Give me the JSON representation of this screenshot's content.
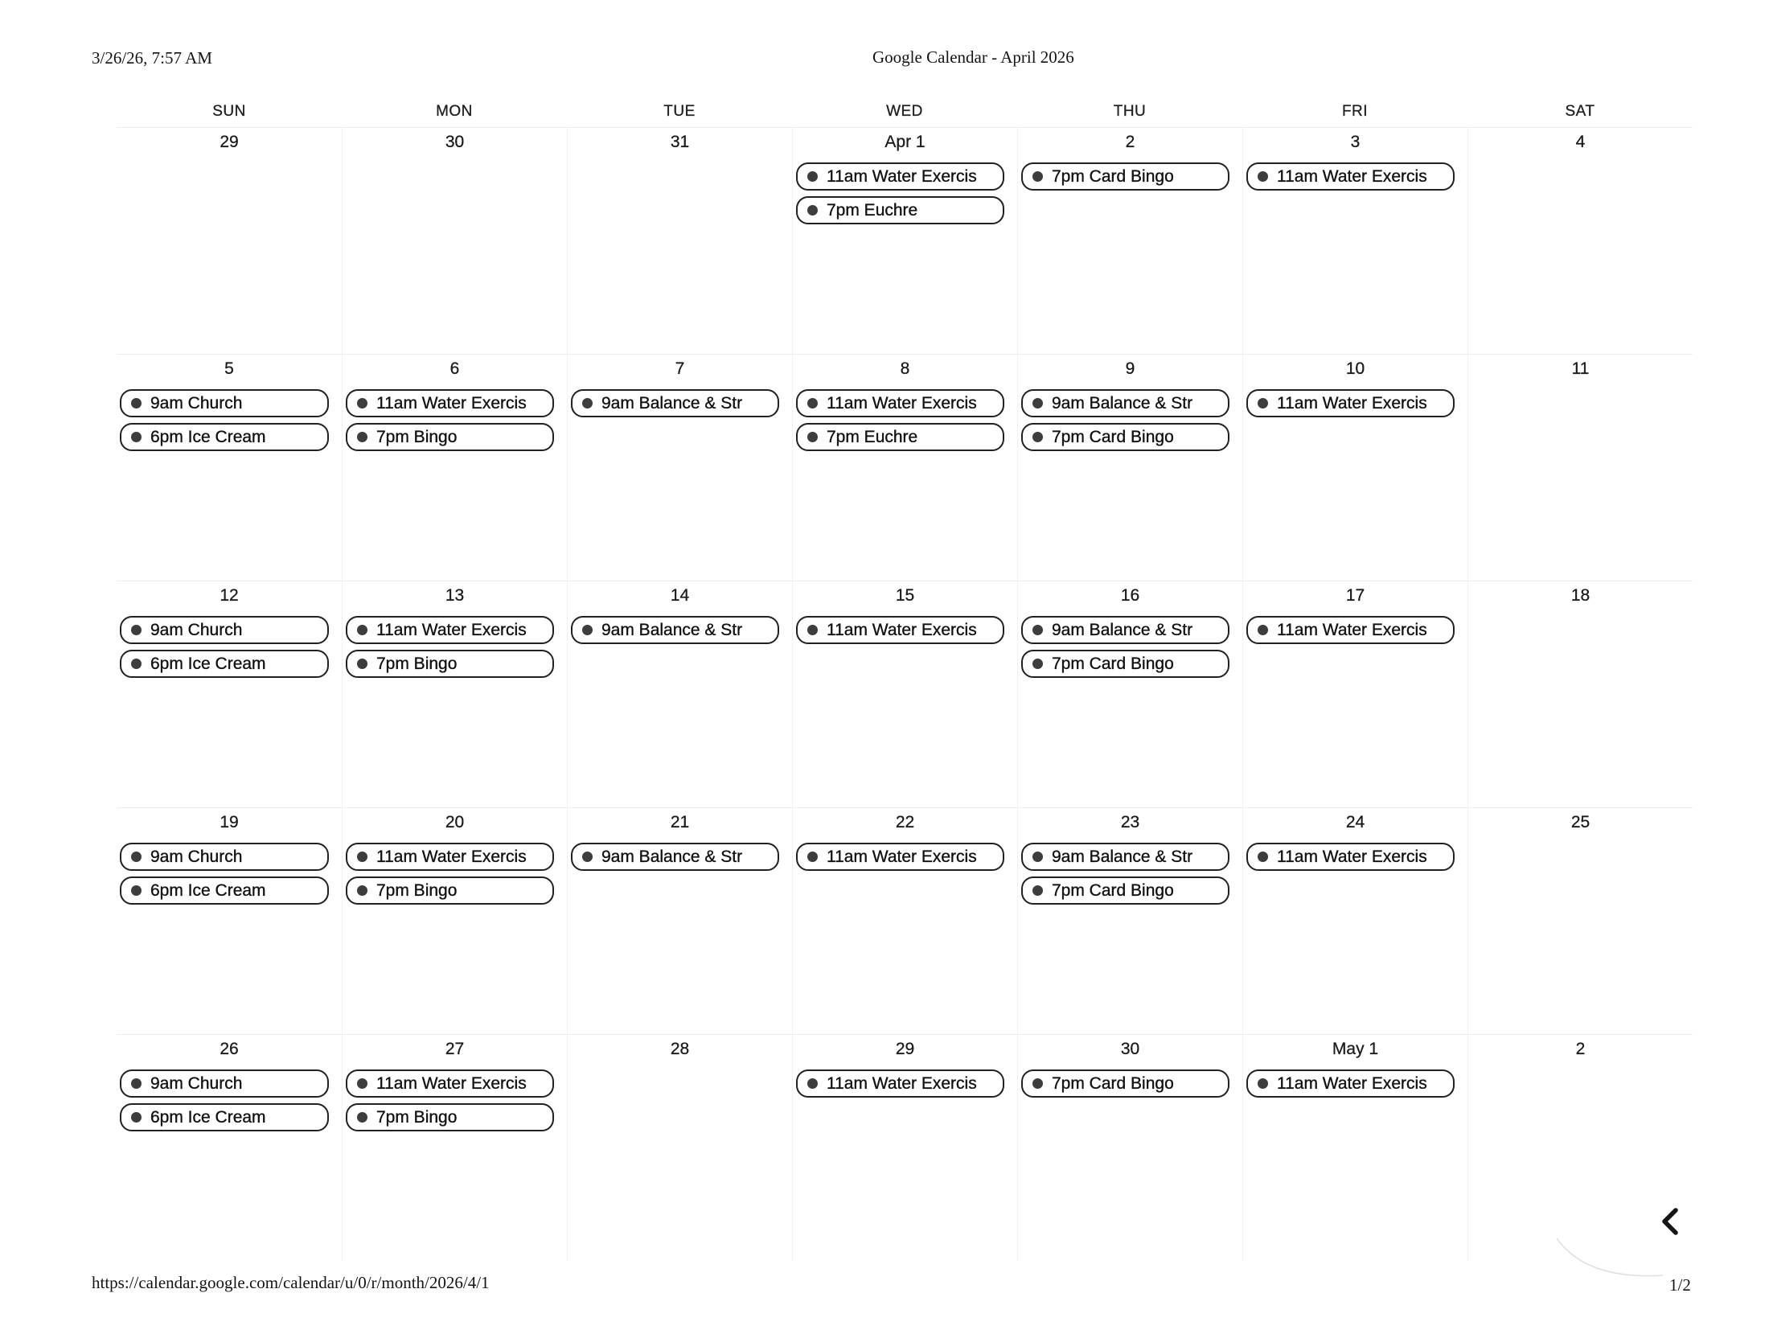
{
  "print_header": {
    "datetime": "3/26/26, 7:57 AM",
    "title": "Google Calendar - April 2026"
  },
  "weekday_headers": [
    "SUN",
    "MON",
    "TUE",
    "WED",
    "THU",
    "FRI",
    "SAT"
  ],
  "weeks": [
    {
      "days": [
        {
          "date": "29",
          "events": []
        },
        {
          "date": "30",
          "events": []
        },
        {
          "date": "31",
          "events": []
        },
        {
          "date": "Apr 1",
          "events": [
            "11am Water Exercis",
            "7pm Euchre"
          ]
        },
        {
          "date": "2",
          "events": [
            "7pm Card Bingo"
          ]
        },
        {
          "date": "3",
          "events": [
            "11am Water Exercis"
          ]
        },
        {
          "date": "4",
          "events": []
        }
      ]
    },
    {
      "days": [
        {
          "date": "5",
          "events": [
            "9am Church",
            "6pm Ice Cream"
          ]
        },
        {
          "date": "6",
          "events": [
            "11am Water Exercis",
            "7pm Bingo"
          ]
        },
        {
          "date": "7",
          "events": [
            "9am Balance & Str"
          ]
        },
        {
          "date": "8",
          "events": [
            "11am Water Exercis",
            "7pm Euchre"
          ]
        },
        {
          "date": "9",
          "events": [
            "9am Balance & Str",
            "7pm Card Bingo"
          ]
        },
        {
          "date": "10",
          "events": [
            "11am Water Exercis"
          ]
        },
        {
          "date": "11",
          "events": []
        }
      ]
    },
    {
      "days": [
        {
          "date": "12",
          "events": [
            "9am Church",
            "6pm Ice Cream"
          ]
        },
        {
          "date": "13",
          "events": [
            "11am Water Exercis",
            "7pm Bingo"
          ]
        },
        {
          "date": "14",
          "events": [
            "9am Balance & Str"
          ]
        },
        {
          "date": "15",
          "events": [
            "11am Water Exercis"
          ]
        },
        {
          "date": "16",
          "events": [
            "9am Balance & Str",
            "7pm Card Bingo"
          ]
        },
        {
          "date": "17",
          "events": [
            "11am Water Exercis"
          ]
        },
        {
          "date": "18",
          "events": []
        }
      ]
    },
    {
      "days": [
        {
          "date": "19",
          "events": [
            "9am Church",
            "6pm Ice Cream"
          ]
        },
        {
          "date": "20",
          "events": [
            "11am Water Exercis",
            "7pm Bingo"
          ]
        },
        {
          "date": "21",
          "events": [
            "9am Balance & Str"
          ]
        },
        {
          "date": "22",
          "events": [
            "11am Water Exercis"
          ]
        },
        {
          "date": "23",
          "events": [
            "9am Balance & Str",
            "7pm Card Bingo"
          ]
        },
        {
          "date": "24",
          "events": [
            "11am Water Exercis"
          ]
        },
        {
          "date": "25",
          "events": []
        }
      ]
    },
    {
      "days": [
        {
          "date": "26",
          "events": [
            "9am Church",
            "6pm Ice Cream"
          ]
        },
        {
          "date": "27",
          "events": [
            "11am Water Exercis",
            "7pm Bingo"
          ]
        },
        {
          "date": "28",
          "events": []
        },
        {
          "date": "29",
          "events": [
            "11am Water Exercis"
          ]
        },
        {
          "date": "30",
          "events": [
            "7pm Card Bingo"
          ]
        },
        {
          "date": "May 1",
          "events": [
            "11am Water Exercis"
          ]
        },
        {
          "date": "2",
          "events": []
        }
      ]
    }
  ],
  "print_footer": {
    "url": "https://calendar.google.com/calendar/u/0/r/month/2026/4/1",
    "page": "1/2"
  },
  "colors": {
    "pill_border": "#212121",
    "event_dot": "#3d3d3d",
    "text": "#1b1b1b",
    "grid_line": "#ededed"
  }
}
